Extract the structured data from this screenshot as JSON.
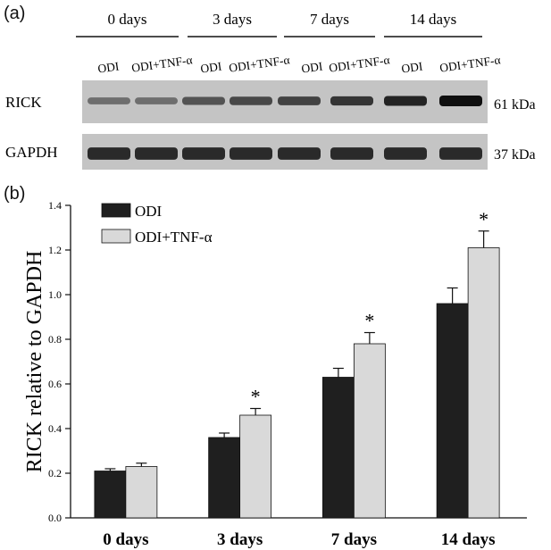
{
  "panel_a": {
    "label": "(a)",
    "groups": [
      "0 days",
      "3 days",
      "7 days",
      "14 days"
    ],
    "lanes": [
      "ODI",
      "ODI+TNF-α",
      "ODI",
      "ODI+TNF-α",
      "ODI",
      "ODI+TNF-α",
      "ODI",
      "ODI+TNF-α"
    ],
    "rows": [
      {
        "name": "RICK",
        "mw": "61 kDa",
        "intensity": [
          0.3,
          0.3,
          0.5,
          0.58,
          0.62,
          0.72,
          0.85,
          1.0
        ]
      },
      {
        "name": "GAPDH",
        "mw": "37 kDa",
        "intensity": [
          0.8,
          0.8,
          0.8,
          0.8,
          0.8,
          0.8,
          0.8,
          0.8
        ]
      }
    ]
  },
  "panel_b": {
    "label": "(b)"
  },
  "chart_data": {
    "type": "bar",
    "categories": [
      "0 days",
      "3 days",
      "7 days",
      "14 days"
    ],
    "series": [
      {
        "name": "ODI",
        "color": "#1f1f1f",
        "values": [
          0.21,
          0.36,
          0.63,
          0.96
        ],
        "errors": [
          0.01,
          0.02,
          0.04,
          0.07
        ]
      },
      {
        "name": "ODI+TNF-α",
        "color": "#d9d9d9",
        "values": [
          0.23,
          0.46,
          0.78,
          1.21
        ],
        "errors": [
          0.015,
          0.03,
          0.05,
          0.075
        ]
      }
    ],
    "significance": [
      "",
      "*",
      "*",
      "*"
    ],
    "ylabel": "RICK relative to GAPDH",
    "xlabel": "",
    "ylim": [
      0,
      1.4
    ],
    "yticks": [
      "0.0",
      "0.2",
      "0.4",
      "0.6",
      "0.8",
      "1.0",
      "1.2",
      "1.4"
    ],
    "legend_position": "top-left",
    "grid": false
  }
}
